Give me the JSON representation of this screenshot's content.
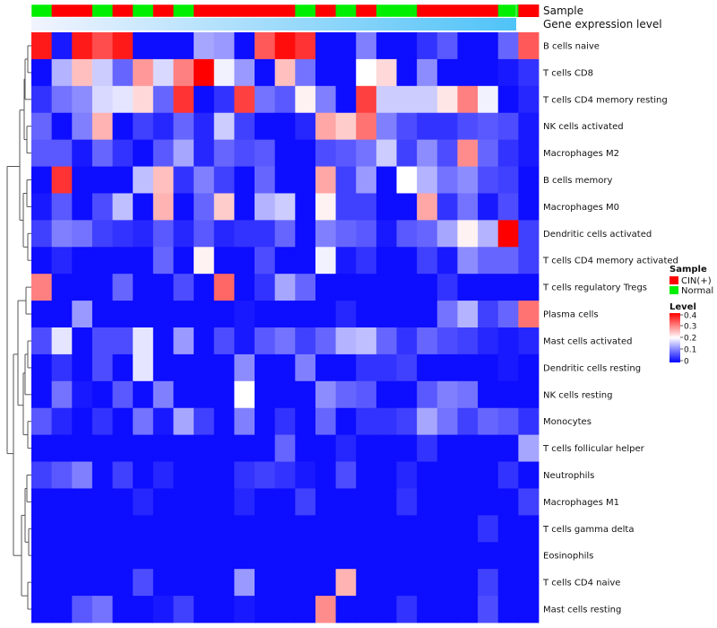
{
  "chart_data": {
    "type": "heatmap",
    "annotation_labels": {
      "sample": "Sample",
      "gene": "Gene expression level"
    },
    "legend": {
      "sample_title": "Sample",
      "sample_items": [
        {
          "label": "CIN(+)",
          "color": "#ff0000"
        },
        {
          "label": "Normal",
          "color": "#00ee00"
        }
      ],
      "level_title": "Level",
      "level_ticks": [
        "0.4",
        "0.3",
        "0.2",
        "0.1",
        "0"
      ]
    },
    "color_scale": {
      "min": 0,
      "mid": 0.2,
      "max": 0.4,
      "low": "#0000ff",
      "midColor": "#ffffff",
      "high": "#ff0000"
    },
    "gene_gradient": {
      "start": "#f2f4ff",
      "end": "#4fc3f7"
    },
    "sample_groups": [
      "G",
      "R",
      "R",
      "G",
      "R",
      "G",
      "R",
      "G",
      "R",
      "R",
      "R",
      "R",
      "R",
      "G",
      "R",
      "G",
      "R",
      "G",
      "G",
      "R",
      "R",
      "R",
      "R",
      "G",
      "R"
    ],
    "rows": [
      "B cells naive",
      "T cells CD8",
      "T cells CD4 memory resting",
      "NK cells activated",
      "Macrophages M2",
      "B cells memory",
      "Macrophages M0",
      "Dendritic cells activated",
      "T cells CD4 memory activated",
      "T cells regulatory  Tregs",
      "Plasma cells",
      "Mast cells activated",
      "Dendritic cells resting",
      "NK cells resting",
      "Monocytes",
      "T cells follicular helper",
      "Neutrophils",
      "Macrophages M1",
      "T cells gamma delta",
      "Eosinophils",
      "T cells CD4 naive",
      "Mast cells resting"
    ],
    "values": [
      [
        0.38,
        0.02,
        0.38,
        0.34,
        0.38,
        0.01,
        0.01,
        0.01,
        0.13,
        0.12,
        0.01,
        0.33,
        0.39,
        0.36,
        0.01,
        0.01,
        0.1,
        0.01,
        0.01,
        0.04,
        0.07,
        0.01,
        0.01,
        0.08,
        0.33
      ],
      [
        0.01,
        0.14,
        0.25,
        0.16,
        0.08,
        0.28,
        0.17,
        0.3,
        0.4,
        0.19,
        0.12,
        0.01,
        0.25,
        0.09,
        0.01,
        0.01,
        0.2,
        0.23,
        0.01,
        0.11,
        0.01,
        0.01,
        0.01,
        0.02,
        0.04
      ],
      [
        0.04,
        0.09,
        0.11,
        0.17,
        0.18,
        0.23,
        0.08,
        0.36,
        0.01,
        0.04,
        0.35,
        0.09,
        0.07,
        0.21,
        0.1,
        0.01,
        0.35,
        0.16,
        0.16,
        0.16,
        0.22,
        0.3,
        0.19,
        0.01,
        0.03
      ],
      [
        0.08,
        0.01,
        0.1,
        0.26,
        0.01,
        0.05,
        0.03,
        0.08,
        0.03,
        0.16,
        0.05,
        0.01,
        0.01,
        0.03,
        0.27,
        0.24,
        0.31,
        0.1,
        0.06,
        0.04,
        0.04,
        0.06,
        0.07,
        0.06,
        0.02
      ],
      [
        0.07,
        0.07,
        0.02,
        0.08,
        0.04,
        0.01,
        0.07,
        0.13,
        0.03,
        0.08,
        0.06,
        0.07,
        0.01,
        0.01,
        0.06,
        0.07,
        0.09,
        0.16,
        0.05,
        0.11,
        0.06,
        0.29,
        0.08,
        0.04,
        0.02
      ],
      [
        0.01,
        0.36,
        0.01,
        0.01,
        0.01,
        0.15,
        0.25,
        0.04,
        0.1,
        0.05,
        0.01,
        0.08,
        0.01,
        0.01,
        0.27,
        0.05,
        0.12,
        0.01,
        0.2,
        0.14,
        0.09,
        0.11,
        0.06,
        0.05,
        0.01
      ],
      [
        0.02,
        0.07,
        0.01,
        0.06,
        0.15,
        0.01,
        0.26,
        0.01,
        0.08,
        0.24,
        0.01,
        0.14,
        0.16,
        0.01,
        0.21,
        0.05,
        0.05,
        0.01,
        0.01,
        0.27,
        0.04,
        0.09,
        0.02,
        0.06,
        0.01
      ],
      [
        0.05,
        0.1,
        0.09,
        0.05,
        0.04,
        0.03,
        0.07,
        0.03,
        0.07,
        0.03,
        0.04,
        0.04,
        0.08,
        0.01,
        0.1,
        0.08,
        0.07,
        0.02,
        0.07,
        0.08,
        0.13,
        0.21,
        0.14,
        0.4,
        0.05
      ],
      [
        0.01,
        0.03,
        0.01,
        0.01,
        0.01,
        0.01,
        0.08,
        0.01,
        0.21,
        0.01,
        0.01,
        0.06,
        0.01,
        0.01,
        0.19,
        0.02,
        0.04,
        0.01,
        0.01,
        0.05,
        0.02,
        0.11,
        0.08,
        0.08,
        0.05
      ],
      [
        0.3,
        0.01,
        0.01,
        0.01,
        0.08,
        0.01,
        0.01,
        0.06,
        0.01,
        0.32,
        0.01,
        0.04,
        0.13,
        0.08,
        0.01,
        0.01,
        0.01,
        0.01,
        0.01,
        0.01,
        0.04,
        0.01,
        0.01,
        0.01,
        0.01
      ],
      [
        0.01,
        0.01,
        0.12,
        0.01,
        0.01,
        0.01,
        0.01,
        0.01,
        0.01,
        0.01,
        0.02,
        0.01,
        0.01,
        0.01,
        0.01,
        0.03,
        0.01,
        0.01,
        0.01,
        0.01,
        0.09,
        0.14,
        0.05,
        0.08,
        0.31
      ],
      [
        0.06,
        0.18,
        0.01,
        0.06,
        0.06,
        0.18,
        0.01,
        0.12,
        0.01,
        0.06,
        0.02,
        0.07,
        0.09,
        0.05,
        0.08,
        0.14,
        0.15,
        0.08,
        0.04,
        0.08,
        0.06,
        0.05,
        0.03,
        0.02,
        0.03
      ],
      [
        0.01,
        0.04,
        0.01,
        0.06,
        0.01,
        0.18,
        0.01,
        0.01,
        0.01,
        0.01,
        0.11,
        0.01,
        0.01,
        0.1,
        0.01,
        0.01,
        0.04,
        0.04,
        0.05,
        0.01,
        0.01,
        0.01,
        0.01,
        0.02,
        0.01
      ],
      [
        0.01,
        0.09,
        0.02,
        0.01,
        0.07,
        0.01,
        0.1,
        0.01,
        0.01,
        0.01,
        0.2,
        0.01,
        0.01,
        0.01,
        0.11,
        0.08,
        0.07,
        0.01,
        0.01,
        0.07,
        0.1,
        0.09,
        0.01,
        0.01,
        0.01
      ],
      [
        0.07,
        0.03,
        0.01,
        0.04,
        0.01,
        0.09,
        0.02,
        0.13,
        0.05,
        0.01,
        0.1,
        0.01,
        0.04,
        0.01,
        0.08,
        0.01,
        0.04,
        0.04,
        0.05,
        0.13,
        0.09,
        0.05,
        0.08,
        0.07,
        0.04
      ],
      [
        0.01,
        0.01,
        0.01,
        0.01,
        0.01,
        0.01,
        0.01,
        0.01,
        0.01,
        0.01,
        0.01,
        0.01,
        0.08,
        0.01,
        0.01,
        0.03,
        0.01,
        0.01,
        0.01,
        0.04,
        0.01,
        0.01,
        0.01,
        0.01,
        0.13
      ],
      [
        0.05,
        0.07,
        0.1,
        0.01,
        0.05,
        0.01,
        0.03,
        0.01,
        0.01,
        0.01,
        0.04,
        0.05,
        0.04,
        0.02,
        0.01,
        0.06,
        0.01,
        0.01,
        0.03,
        0.01,
        0.01,
        0.01,
        0.01,
        0.04,
        0.01
      ],
      [
        0.01,
        0.01,
        0.01,
        0.01,
        0.01,
        0.03,
        0.01,
        0.01,
        0.01,
        0.01,
        0.03,
        0.01,
        0.01,
        0.05,
        0.01,
        0.01,
        0.01,
        0.01,
        0.04,
        0.01,
        0.01,
        0.01,
        0.01,
        0.01,
        0.05
      ],
      [
        0.01,
        0.01,
        0.01,
        0.01,
        0.01,
        0.01,
        0.01,
        0.01,
        0.01,
        0.01,
        0.01,
        0.01,
        0.01,
        0.01,
        0.01,
        0.01,
        0.01,
        0.01,
        0.01,
        0.01,
        0.01,
        0.01,
        0.04,
        0.01,
        0.01
      ],
      [
        0.01,
        0.01,
        0.01,
        0.01,
        0.01,
        0.01,
        0.01,
        0.01,
        0.01,
        0.01,
        0.01,
        0.01,
        0.01,
        0.01,
        0.01,
        0.01,
        0.01,
        0.01,
        0.01,
        0.01,
        0.01,
        0.01,
        0.01,
        0.01,
        0.01
      ],
      [
        0.01,
        0.01,
        0.01,
        0.01,
        0.01,
        0.06,
        0.01,
        0.01,
        0.01,
        0.01,
        0.12,
        0.01,
        0.01,
        0.01,
        0.01,
        0.26,
        0.01,
        0.01,
        0.01,
        0.01,
        0.01,
        0.01,
        0.05,
        0.01,
        0.01
      ],
      [
        0.01,
        0.01,
        0.07,
        0.09,
        0.01,
        0.01,
        0.02,
        0.05,
        0.01,
        0.01,
        0.02,
        0.01,
        0.01,
        0.01,
        0.29,
        0.01,
        0.01,
        0.01,
        0.04,
        0.01,
        0.01,
        0.01,
        0.06,
        0.01,
        0.01
      ]
    ]
  }
}
